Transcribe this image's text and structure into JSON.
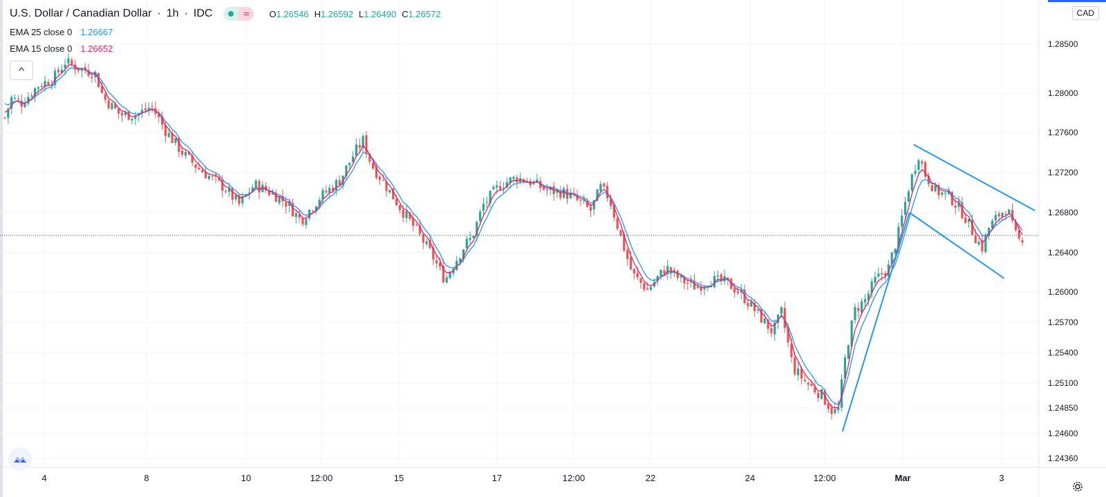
{
  "header": {
    "symbol": "U.S. Dollar / Canadian Dollar",
    "sep1": "·",
    "interval": "1h",
    "sep2": "·",
    "source": "IDC",
    "ohlc": {
      "o_label": "O",
      "o_value": "1.26546",
      "h_label": "H",
      "h_value": "1.26592",
      "l_label": "L",
      "l_value": "1.26490",
      "c_label": "C",
      "c_value": "1.26572"
    },
    "status_wave": "≈"
  },
  "indicators": [
    {
      "label": "EMA 25 close 0",
      "value": "1.26667",
      "color": "#2196f3"
    },
    {
      "label": "EMA 15 close 0",
      "value": "1.26652",
      "color": "#e91e63"
    }
  ],
  "currency": "CAD",
  "collapse_glyph": "^",
  "icons": {
    "logo": "tradingview-logo-icon",
    "settings": "gear-icon",
    "collapse": "chevron-up-icon"
  },
  "colors": {
    "up": "#26a69a",
    "down": "#ef5350",
    "ema25": "#2196f3",
    "ema15": "#e91e63",
    "trendline": "#2196f3",
    "grid": "#f0f3fa"
  },
  "chart_data": {
    "type": "candlestick",
    "title": "U.S. Dollar / Canadian Dollar · 1h · IDC",
    "y_ticks": [
      1.285,
      1.28,
      1.276,
      1.272,
      1.268,
      1.264,
      1.26,
      1.257,
      1.254,
      1.251,
      1.2485,
      1.246,
      1.2436
    ],
    "y_tick_labels": [
      "1.28500",
      "1.28000",
      "1.27600",
      "1.27200",
      "1.26800",
      "1.26400",
      "1.26000",
      "1.25700",
      "1.25400",
      "1.25100",
      "1.24850",
      "1.24600",
      "1.24360"
    ],
    "x_tick_labels": [
      "4",
      "8",
      "10",
      "12:00",
      "15",
      "17",
      "12:00",
      "22",
      "24",
      "12:00",
      "Mar",
      "3"
    ],
    "current_price": 1.26572,
    "price_path": [
      [
        0,
        1.2775
      ],
      [
        8,
        1.2795
      ],
      [
        20,
        1.279
      ],
      [
        40,
        1.2808
      ],
      [
        58,
        1.2815
      ],
      [
        72,
        1.2832
      ],
      [
        90,
        1.2825
      ],
      [
        108,
        1.282
      ],
      [
        118,
        1.2795
      ],
      [
        138,
        1.2778
      ],
      [
        158,
        1.2778
      ],
      [
        175,
        1.2787
      ],
      [
        192,
        1.2762
      ],
      [
        212,
        1.274
      ],
      [
        230,
        1.2725
      ],
      [
        246,
        1.2715
      ],
      [
        262,
        1.2705
      ],
      [
        280,
        1.2688
      ],
      [
        298,
        1.2708
      ],
      [
        318,
        1.27
      ],
      [
        336,
        1.269
      ],
      [
        354,
        1.2672
      ],
      [
        376,
        1.2695
      ],
      [
        400,
        1.2712
      ],
      [
        418,
        1.274
      ],
      [
        428,
        1.2752
      ],
      [
        438,
        1.2728
      ],
      [
        456,
        1.2706
      ],
      [
        474,
        1.2683
      ],
      [
        492,
        1.2662
      ],
      [
        510,
        1.2638
      ],
      [
        526,
        1.2612
      ],
      [
        534,
        1.2625
      ],
      [
        550,
        1.2648
      ],
      [
        558,
        1.2655
      ],
      [
        572,
        1.2688
      ],
      [
        592,
        1.2708
      ],
      [
        612,
        1.2715
      ],
      [
        630,
        1.271
      ],
      [
        648,
        1.2702
      ],
      [
        668,
        1.27
      ],
      [
        684,
        1.2692
      ],
      [
        700,
        1.2682
      ],
      [
        712,
        1.2705
      ],
      [
        722,
        1.2695
      ],
      [
        738,
        1.265
      ],
      [
        750,
        1.2618
      ],
      [
        768,
        1.2602
      ],
      [
        790,
        1.2625
      ],
      [
        808,
        1.2612
      ],
      [
        826,
        1.2605
      ],
      [
        844,
        1.2612
      ],
      [
        862,
        1.261
      ],
      [
        880,
        1.2598
      ],
      [
        898,
        1.258
      ],
      [
        918,
        1.256
      ],
      [
        928,
        1.258
      ],
      [
        942,
        1.2525
      ],
      [
        958,
        1.251
      ],
      [
        976,
        1.2498
      ],
      [
        990,
        1.248
      ],
      [
        996,
        1.2484
      ],
      [
        1006,
        1.2545
      ],
      [
        1016,
        1.2582
      ],
      [
        1028,
        1.2592
      ],
      [
        1040,
        1.2612
      ],
      [
        1056,
        1.2625
      ],
      [
        1068,
        1.266
      ],
      [
        1080,
        1.2705
      ],
      [
        1092,
        1.2738
      ],
      [
        1100,
        1.2718
      ],
      [
        1112,
        1.2702
      ],
      [
        1130,
        1.2695
      ],
      [
        1146,
        1.2678
      ],
      [
        1160,
        1.2655
      ],
      [
        1168,
        1.2645
      ],
      [
        1176,
        1.2665
      ],
      [
        1188,
        1.2678
      ],
      [
        1198,
        1.2685
      ],
      [
        1206,
        1.266
      ],
      [
        1212,
        1.2652
      ],
      [
        1218,
        1.2657
      ]
    ],
    "trendlines": [
      {
        "from": [
          1001,
          1.2462
        ],
        "to": [
          1081,
          1.268
        ]
      },
      {
        "from": [
          1081,
          1.268
        ],
        "to": [
          1194,
          1.2614
        ]
      },
      {
        "from": [
          1086,
          1.2748
        ],
        "to": [
          1231,
          1.2682
        ]
      }
    ]
  }
}
